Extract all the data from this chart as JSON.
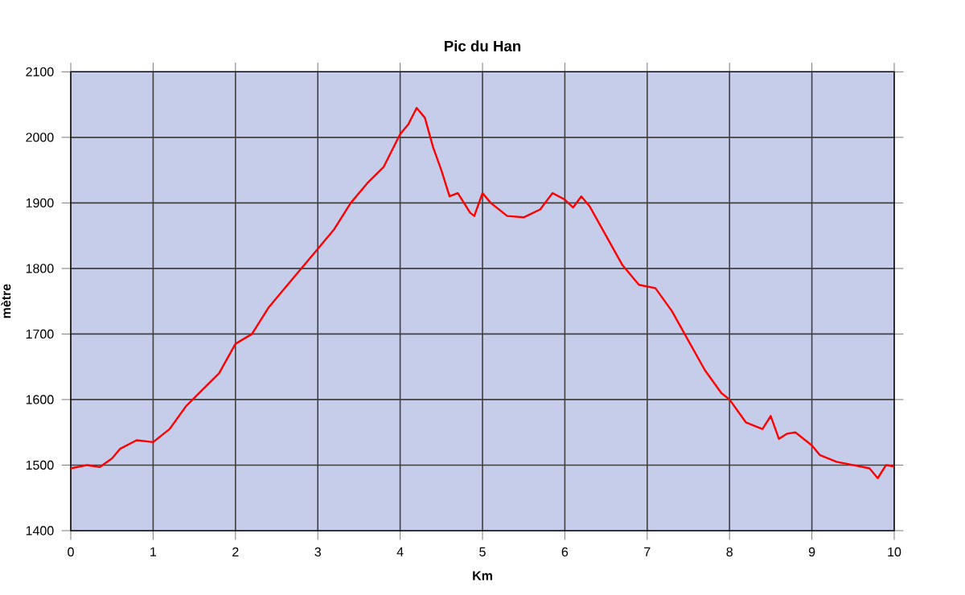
{
  "chart_data": {
    "type": "line",
    "title": "Pic du Han",
    "xlabel": "Km",
    "ylabel": "mètre",
    "xlim": [
      0,
      10
    ],
    "ylim": [
      1400,
      2100
    ],
    "xticks": [
      0,
      1,
      2,
      3,
      4,
      5,
      6,
      7,
      8,
      9,
      10
    ],
    "yticks": [
      1400,
      1500,
      1600,
      1700,
      1800,
      1900,
      2000,
      2100
    ],
    "grid": true,
    "marker": "none",
    "line_style": "solid",
    "series": [
      {
        "color": "#ff0000",
        "x": [
          0,
          0.2,
          0.35,
          0.5,
          0.6,
          0.8,
          1.0,
          1.2,
          1.4,
          1.6,
          1.8,
          2.0,
          2.2,
          2.4,
          2.6,
          2.8,
          3.0,
          3.2,
          3.4,
          3.6,
          3.8,
          4.0,
          4.1,
          4.2,
          4.3,
          4.4,
          4.5,
          4.6,
          4.7,
          4.85,
          4.9,
          5.0,
          5.1,
          5.3,
          5.5,
          5.7,
          5.85,
          6.0,
          6.1,
          6.2,
          6.3,
          6.5,
          6.7,
          6.9,
          7.1,
          7.3,
          7.5,
          7.7,
          7.9,
          8.0,
          8.2,
          8.4,
          8.5,
          8.6,
          8.7,
          8.8,
          9.0,
          9.1,
          9.3,
          9.5,
          9.7,
          9.8,
          9.9,
          10
        ],
        "values": [
          1495,
          1500,
          1497,
          1510,
          1525,
          1538,
          1535,
          1555,
          1590,
          1615,
          1640,
          1685,
          1700,
          1740,
          1770,
          1800,
          1830,
          1860,
          1900,
          1930,
          1955,
          2005,
          2020,
          2045,
          2030,
          1985,
          1950,
          1910,
          1915,
          1885,
          1880,
          1915,
          1900,
          1880,
          1878,
          1890,
          1915,
          1905,
          1893,
          1910,
          1895,
          1850,
          1805,
          1775,
          1770,
          1735,
          1690,
          1645,
          1610,
          1600,
          1565,
          1555,
          1575,
          1540,
          1548,
          1550,
          1530,
          1515,
          1505,
          1500,
          1495,
          1480,
          1500,
          1498
        ]
      }
    ]
  }
}
